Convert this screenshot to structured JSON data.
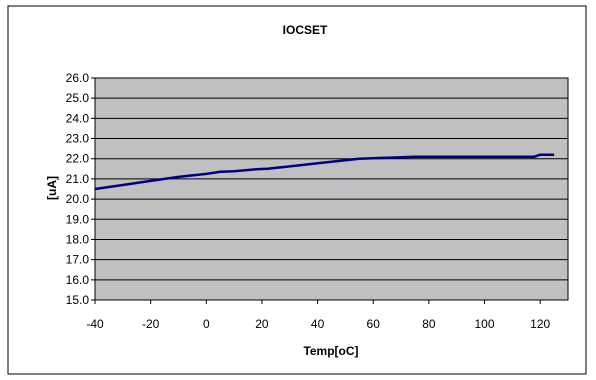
{
  "chart_data": {
    "type": "line",
    "title": "IOCSET",
    "xlabel": "Temp[oC]",
    "ylabel": "[uA]",
    "xlim": [
      -40,
      130
    ],
    "ylim": [
      15.0,
      26.0
    ],
    "x_ticks": [
      -40,
      -20,
      0,
      20,
      40,
      60,
      80,
      100,
      120
    ],
    "x_tick_labels": [
      "-40",
      "-20",
      "0",
      "20",
      "40",
      "60",
      "80",
      "100",
      "120"
    ],
    "y_ticks": [
      15,
      16,
      17,
      18,
      19,
      20,
      21,
      22,
      23,
      24,
      25,
      26
    ],
    "y_tick_labels": [
      "15.0",
      "16.0",
      "17.0",
      "18.0",
      "19.0",
      "20.0",
      "21.0",
      "22.0",
      "23.0",
      "24.0",
      "25.0",
      "26.0"
    ],
    "grid": "horizontal",
    "legend": "none",
    "series": [
      {
        "x": [
          -40,
          -30,
          -20,
          -10,
          0,
          5,
          10,
          18,
          22,
          30,
          40,
          50,
          55,
          65,
          75,
          85,
          95,
          105,
          115,
          118,
          120,
          125
        ],
        "values": [
          20.5,
          20.7,
          20.9,
          21.1,
          21.25,
          21.35,
          21.38,
          21.48,
          21.5,
          21.62,
          21.78,
          21.92,
          22.0,
          22.05,
          22.1,
          22.1,
          22.1,
          22.1,
          22.1,
          22.1,
          22.2,
          22.2
        ],
        "color": "#000080"
      }
    ],
    "colors": {
      "frame_background": "#ffffff",
      "plot_background": "#c0c0c0",
      "gridline": "#000000",
      "border": "#000000"
    }
  }
}
